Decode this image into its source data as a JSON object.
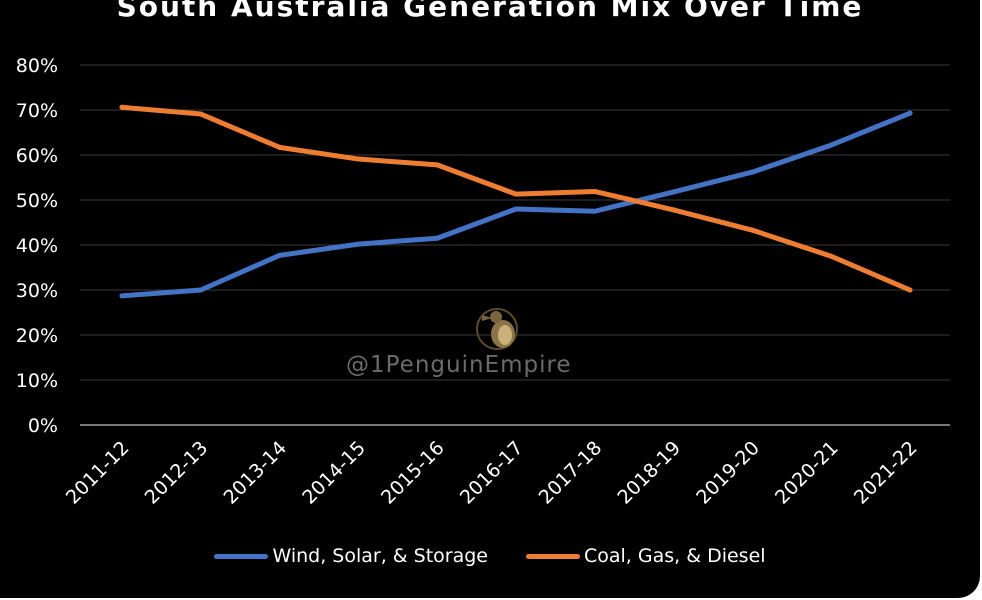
{
  "chart_data": {
    "type": "line",
    "title": "South Australia Generation Mix Over Time",
    "categories": [
      "2011-12",
      "2012-13",
      "2013-14",
      "2014-15",
      "2015-16",
      "2016-17",
      "2017-18",
      "2018-19",
      "2019-20",
      "2020-21",
      "2021-22"
    ],
    "series": [
      {
        "name": "Wind, Solar, & Storage",
        "color": "#4472C4",
        "values": [
          28.7,
          30.0,
          37.7,
          40.2,
          41.5,
          48.0,
          47.5,
          51.8,
          56.2,
          62.2,
          69.3
        ]
      },
      {
        "name": "Coal, Gas, & Diesel",
        "color": "#ED7D31",
        "values": [
          70.6,
          69.1,
          61.7,
          59.1,
          57.8,
          51.3,
          51.9,
          47.8,
          43.3,
          37.5,
          30.0
        ]
      }
    ],
    "yticks": [
      "0%",
      "10%",
      "20%",
      "30%",
      "40%",
      "50%",
      "60%",
      "70%",
      "80%"
    ],
    "ylim": [
      0,
      80
    ],
    "grid": true,
    "legend_position": "bottom",
    "xlabel": "",
    "ylabel": ""
  },
  "watermark": {
    "text": "@1PenguinEmpire",
    "icon": "penguin-logo-icon"
  },
  "colors": {
    "background": "#000000",
    "gridline": "#3a3a3a",
    "axis": "#bfbfbf",
    "text": "#ffffff",
    "watermark": "#6b6b6b"
  }
}
